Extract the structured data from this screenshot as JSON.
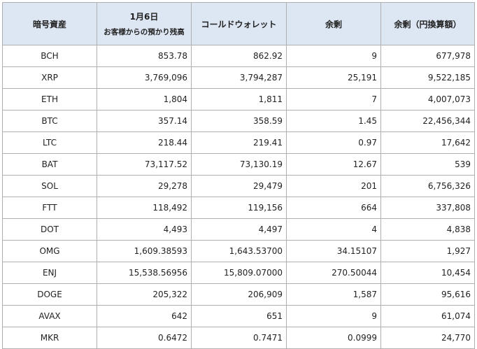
{
  "table": {
    "headers": {
      "asset": "暗号資産",
      "date": "1月6日",
      "deposits": "お客様からの預かり残高",
      "cold_wallet": "コールドウォレット",
      "surplus": "余剰",
      "surplus_jpy": "余剰（円換算額）"
    },
    "rows": [
      {
        "asset": "BCH",
        "deposits": "853.78",
        "cold": "862.92",
        "surplus": "9",
        "jpy": "677,978"
      },
      {
        "asset": "XRP",
        "deposits": "3,769,096",
        "cold": "3,794,287",
        "surplus": "25,191",
        "jpy": "9,522,185"
      },
      {
        "asset": "ETH",
        "deposits": "1,804",
        "cold": "1,811",
        "surplus": "7",
        "jpy": "4,007,073"
      },
      {
        "asset": "BTC",
        "deposits": "357.14",
        "cold": "358.59",
        "surplus": "1.45",
        "jpy": "22,456,344"
      },
      {
        "asset": "LTC",
        "deposits": "218.44",
        "cold": "219.41",
        "surplus": "0.97",
        "jpy": "17,642"
      },
      {
        "asset": "BAT",
        "deposits": "73,117.52",
        "cold": "73,130.19",
        "surplus": "12.67",
        "jpy": "539"
      },
      {
        "asset": "SOL",
        "deposits": "29,278",
        "cold": "29,479",
        "surplus": "201",
        "jpy": "6,756,326"
      },
      {
        "asset": "FTT",
        "deposits": "118,492",
        "cold": "119,156",
        "surplus": "664",
        "jpy": "337,808"
      },
      {
        "asset": "DOT",
        "deposits": "4,493",
        "cold": "4,497",
        "surplus": "4",
        "jpy": "4,838"
      },
      {
        "asset": "OMG",
        "deposits": "1,609.38593",
        "cold": "1,643.53700",
        "surplus": "34.15107",
        "jpy": "1,927"
      },
      {
        "asset": "ENJ",
        "deposits": "15,538.56956",
        "cold": "15,809.07000",
        "surplus": "270.50044",
        "jpy": "10,454"
      },
      {
        "asset": "DOGE",
        "deposits": "205,322",
        "cold": "206,909",
        "surplus": "1,587",
        "jpy": "95,616"
      },
      {
        "asset": "AVAX",
        "deposits": "642",
        "cold": "651",
        "surplus": "9",
        "jpy": "61,074"
      },
      {
        "asset": "MKR",
        "deposits": "0.6472",
        "cold": "0.7471",
        "surplus": "0.0999",
        "jpy": "24,770"
      }
    ]
  }
}
